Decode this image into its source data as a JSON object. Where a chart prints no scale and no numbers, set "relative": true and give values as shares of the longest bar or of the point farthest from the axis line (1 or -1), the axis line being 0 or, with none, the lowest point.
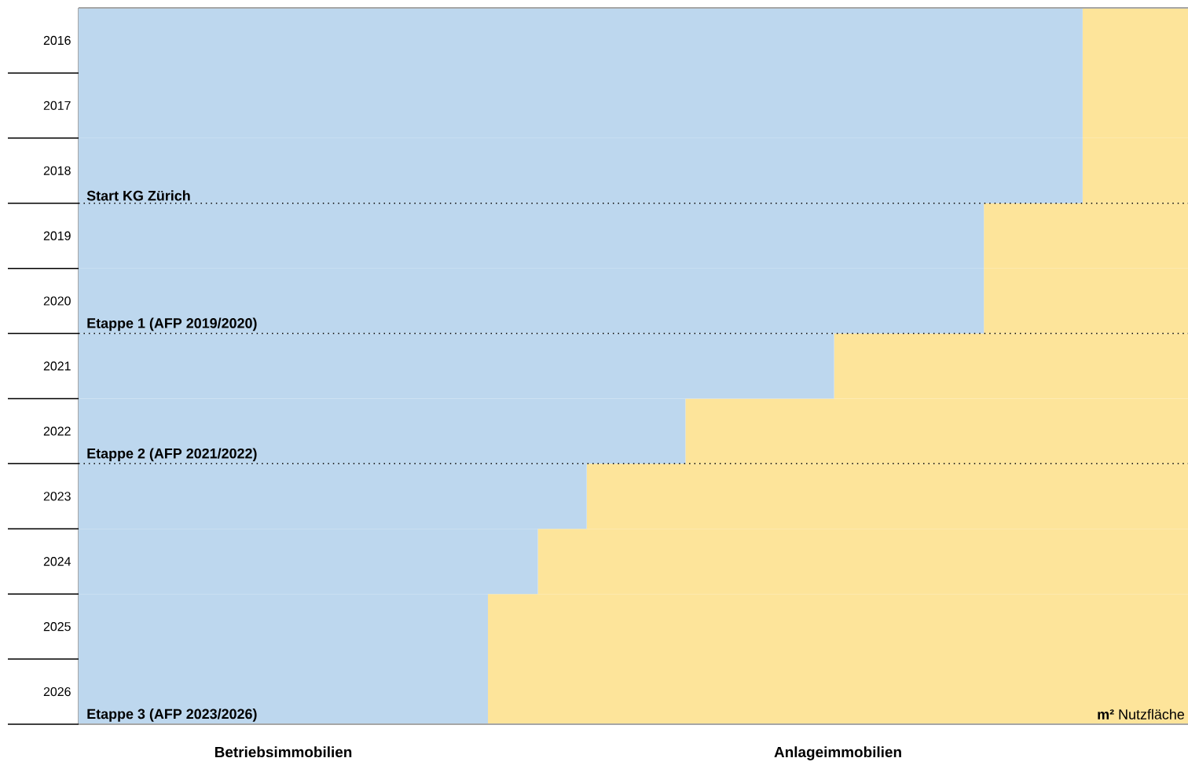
{
  "chart_data": {
    "type": "bar",
    "orientation": "horizontal",
    "stacked": true,
    "relative": true,
    "categories": [
      "2016",
      "2017",
      "2018",
      "2019",
      "2020",
      "2021",
      "2022",
      "2023",
      "2024",
      "2025",
      "2026"
    ],
    "series": [
      {
        "name": "Betriebsimmobilien",
        "color": "#bdd7ee",
        "values": [
          0.905,
          0.905,
          0.905,
          0.816,
          0.816,
          0.681,
          0.547,
          0.458,
          0.414,
          0.369,
          0.369
        ]
      },
      {
        "name": "Anlageimmobilien",
        "color": "#fde49a",
        "values": [
          0.095,
          0.095,
          0.095,
          0.184,
          0.184,
          0.319,
          0.453,
          0.542,
          0.586,
          0.631,
          0.631
        ]
      }
    ],
    "xlabel": "**m²** Nutzfläche",
    "annotations": [
      "Start KG Zürich",
      "Etappe 1 (AFP 2019/2020)",
      "Etappe 2 (AFP 2021/2022)",
      "Etappe 3 (AFP 2023/2026)"
    ]
  }
}
